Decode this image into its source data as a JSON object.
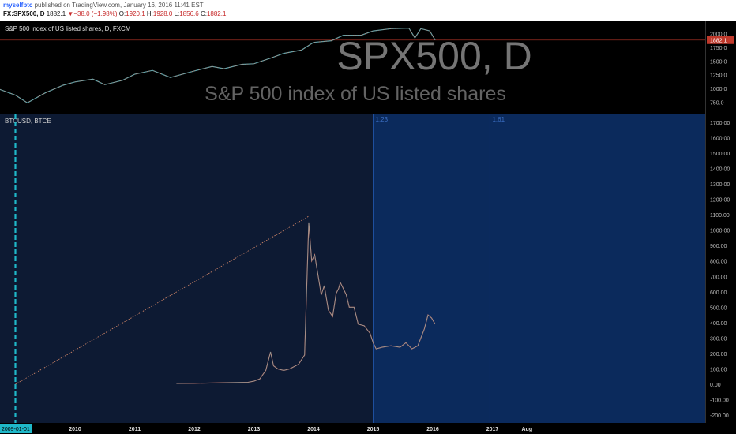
{
  "header": {
    "author": "myselfbtc",
    "published": "published on TradingView.com, January 16, 2016 11:41 EST",
    "symbol": "FX:SPX500, D",
    "last": "1882.1",
    "change": "−38.0 (−1.98%)",
    "open_label": "O:",
    "open": "1920.1",
    "high_label": "H:",
    "high": "1928.0",
    "low_label": "L:",
    "low": "1856.6",
    "close_label": "C:",
    "close": "1882.1"
  },
  "colors": {
    "top_bg": "#000000",
    "bottom_bg": "#0d1a33",
    "blue_zone": "#0b2a5c",
    "cyan": "#1fb8c9",
    "candle_up": "#5fa0a6",
    "candle_down": "#d8806f",
    "price_tag": "#c0392b",
    "fib_line": "#1e4f9e"
  },
  "chart_data": [
    {
      "type": "line",
      "title": "S&P 500 index of US listed shares, D, FXCM",
      "watermark_symbol": "SPX500, D",
      "watermark_desc": "S&P 500 index of US listed shares",
      "last_price_label": "1882.1",
      "ylim": [
        600,
        2180
      ],
      "y_ticks": [
        "2000.0",
        "1750.0",
        "1500.0",
        "1250.0",
        "1000.0",
        "750.0"
      ],
      "x_dates": [
        2008.7,
        2009.0,
        2009.2,
        2009.5,
        2009.8,
        2010.0,
        2010.3,
        2010.5,
        2010.8,
        2011.0,
        2011.3,
        2011.6,
        2011.8,
        2012.0,
        2012.3,
        2012.5,
        2012.8,
        2013.0,
        2013.3,
        2013.5,
        2013.8,
        2014.0,
        2014.3,
        2014.5,
        2014.8,
        2015.0,
        2015.3,
        2015.6,
        2015.7,
        2015.8,
        2015.95,
        2016.04
      ],
      "values": [
        1000,
        880,
        740,
        920,
        1060,
        1120,
        1170,
        1070,
        1150,
        1260,
        1330,
        1200,
        1260,
        1320,
        1400,
        1360,
        1440,
        1450,
        1560,
        1640,
        1700,
        1840,
        1870,
        1970,
        1970,
        2050,
        2090,
        2100,
        1920,
        2090,
        2050,
        1882
      ]
    },
    {
      "type": "line",
      "title": "BTCUSD, BTCE",
      "ylim": [
        -220,
        1720
      ],
      "y_ticks": [
        "1700.00",
        "1600.00",
        "1500.00",
        "1400.00",
        "1300.00",
        "1200.00",
        "1100.00",
        "1000.00",
        "900.00",
        "800.00",
        "700.00",
        "600.00",
        "500.00",
        "400.00",
        "300.00",
        "200.00",
        "100.00",
        "0.00",
        "-100.00",
        "-200.00"
      ],
      "x_ticks": [
        "2010",
        "2011",
        "2012",
        "2013",
        "2014",
        "2015",
        "2016",
        "2017",
        "Aug"
      ],
      "start_label": "2009-01-01",
      "fib_labels": [
        "1.23",
        "1.61"
      ],
      "trendline": {
        "from": [
          2009.0,
          0
        ],
        "to": [
          2013.92,
          1090
        ]
      },
      "x_dates": [
        2011.7,
        2012.0,
        2012.5,
        2012.9,
        2013.0,
        2013.1,
        2013.2,
        2013.28,
        2013.33,
        2013.4,
        2013.5,
        2013.6,
        2013.75,
        2013.85,
        2013.92,
        2013.97,
        2014.02,
        2014.08,
        2014.13,
        2014.18,
        2014.25,
        2014.32,
        2014.38,
        2014.42,
        2014.45,
        2014.5,
        2014.55,
        2014.6,
        2014.68,
        2014.75,
        2014.85,
        2014.95,
        2015.0,
        2015.05,
        2015.15,
        2015.3,
        2015.45,
        2015.55,
        2015.65,
        2015.75,
        2015.82,
        2015.86,
        2015.92,
        2015.98,
        2016.04
      ],
      "values": [
        5,
        6,
        10,
        13,
        20,
        35,
        90,
        210,
        120,
        100,
        90,
        100,
        130,
        190,
        1050,
        800,
        840,
        700,
        580,
        640,
        480,
        440,
        590,
        620,
        660,
        620,
        580,
        500,
        500,
        390,
        380,
        330,
        270,
        230,
        240,
        250,
        240,
        270,
        230,
        250,
        320,
        360,
        450,
        430,
        390
      ]
    }
  ]
}
